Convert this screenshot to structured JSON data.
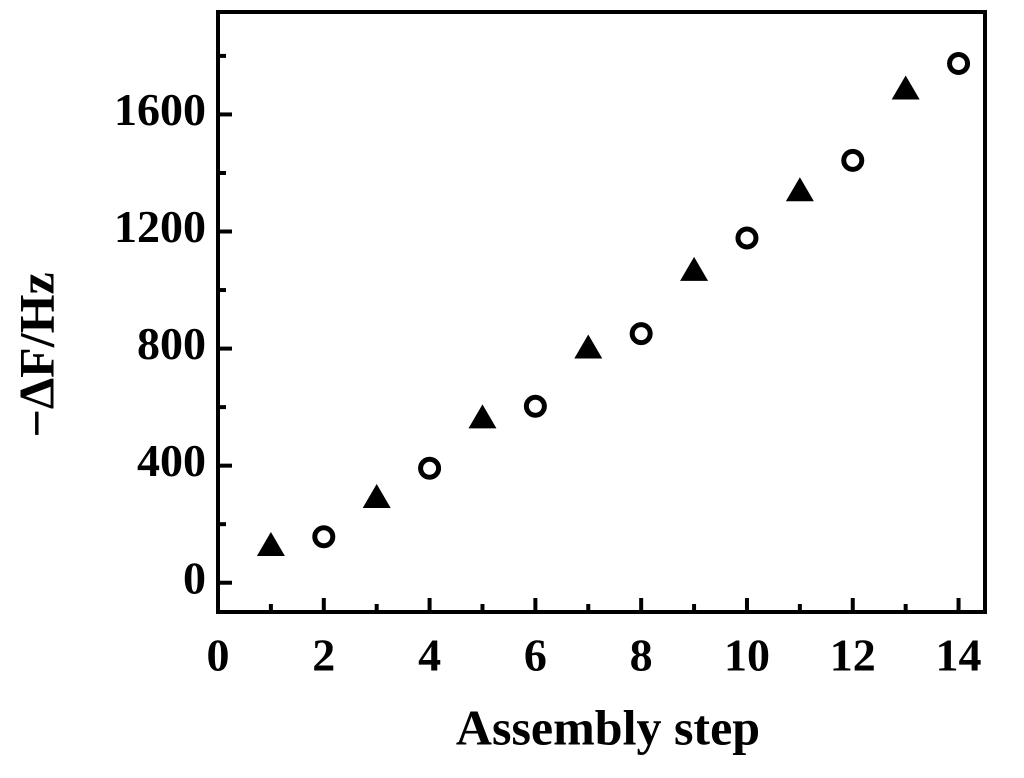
{
  "chart_data": {
    "type": "scatter",
    "xlabel": "Assembly step",
    "ylabel": "−ΔF/Hz",
    "series": [
      {
        "marker": "triangle",
        "color": "#000000",
        "x": [
          1,
          3,
          5,
          7,
          9,
          11,
          13
        ],
        "values": [
          122,
          286,
          558,
          797,
          1062,
          1334,
          1682
        ]
      },
      {
        "marker": "circle",
        "color": "#000000",
        "x": [
          2,
          4,
          6,
          8,
          10,
          12,
          14
        ],
        "values": [
          157,
          391,
          603,
          851,
          1178,
          1443,
          1774
        ]
      }
    ],
    "xlim": [
      0,
      14.5
    ],
    "xticks": [
      0,
      2,
      4,
      6,
      8,
      10,
      12,
      14
    ],
    "xminorticks": [
      1,
      3,
      5,
      7,
      9,
      11,
      13
    ],
    "ylim": [
      -100,
      1950
    ],
    "yticks": [
      0,
      400,
      800,
      1200,
      1600
    ],
    "yminorticks": [
      200,
      600,
      1000,
      1400,
      1800
    ],
    "grid": false
  }
}
